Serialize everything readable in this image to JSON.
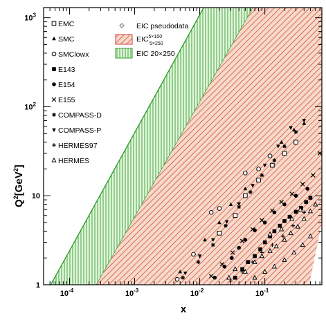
{
  "chart_data": {
    "type": "scatter",
    "title": "",
    "xlabel": "x",
    "ylabel": "Q²[GeV²]",
    "xlabel_text": "x",
    "ylabel_main": "Q",
    "ylabel_sup1": "2",
    "ylabel_unit": "[GeV",
    "ylabel_sup2": "2",
    "ylabel_close": "]",
    "xscale": "log",
    "yscale": "log",
    "xlim": [
      4e-05,
      0.75
    ],
    "ylim": [
      1,
      1300
    ],
    "grid": false,
    "x_ticks": [
      {
        "base": "10",
        "exp": "-4",
        "value": 0.0001
      },
      {
        "base": "10",
        "exp": "-3",
        "value": 0.001
      },
      {
        "base": "10",
        "exp": "-2",
        "value": 0.01
      },
      {
        "base": "10",
        "exp": "-1",
        "value": 0.1
      }
    ],
    "y_ticks": [
      {
        "label": "1",
        "value": 1
      },
      {
        "label": "10",
        "value": 10
      },
      {
        "base": "10",
        "exp": "2",
        "value": 100
      },
      {
        "base": "10",
        "exp": "3",
        "value": 1000
      }
    ],
    "bands": [
      {
        "name": "EIC 20×250",
        "color": "#2ca02c",
        "style": "vertical-hatch",
        "lower_edge": [
          [
            5.15e-05,
            1
          ],
          [
            0.0115,
            1300
          ]
        ],
        "upper_edge": [
          [
            0.00026,
            1
          ],
          [
            0.066,
            1300
          ]
        ]
      },
      {
        "name": "EIC 5×100 / 5×250",
        "color": "#d23c32",
        "style": "diagonal-hatch",
        "lower_edge": [
          [
            0.00026,
            1
          ],
          [
            0.066,
            1300
          ]
        ],
        "upper_edge": [
          [
            0.48,
            1
          ],
          [
            0.75,
            5
          ]
        ]
      }
    ],
    "series": [
      {
        "name": "EMC",
        "marker": "open-square",
        "points": [
          [
            0.02,
            3.8
          ],
          [
            0.035,
            6
          ],
          [
            0.05,
            10
          ],
          [
            0.08,
            15
          ],
          [
            0.13,
            22
          ],
          [
            0.2,
            30
          ],
          [
            0.3,
            40
          ]
        ]
      },
      {
        "name": "SMC",
        "marker": "filled-triangle",
        "points": [
          [
            0.005,
            1.4
          ],
          [
            0.008,
            2.2
          ],
          [
            0.012,
            3.2
          ],
          [
            0.02,
            5
          ],
          [
            0.03,
            8
          ],
          [
            0.05,
            12
          ],
          [
            0.08,
            20
          ],
          [
            0.12,
            28
          ],
          [
            0.18,
            40
          ],
          [
            0.28,
            55
          ],
          [
            0.4,
            65
          ]
        ]
      },
      {
        "name": "SMClowx",
        "marker": "open-circle",
        "points": [
          [
            0.0045,
            1.15
          ],
          [
            0.008,
            2.2
          ],
          [
            0.015,
            6.5
          ],
          [
            0.02,
            7.2
          ],
          [
            0.05,
            18
          ],
          [
            0.08,
            20
          ],
          [
            0.12,
            28
          ]
        ]
      },
      {
        "name": "E143",
        "marker": "filled-square",
        "points": [
          [
            0.035,
            1.2
          ],
          [
            0.045,
            1.5
          ],
          [
            0.055,
            1.8
          ],
          [
            0.07,
            2.1
          ],
          [
            0.085,
            2.5
          ],
          [
            0.1,
            3
          ],
          [
            0.12,
            3.5
          ],
          [
            0.14,
            4
          ],
          [
            0.17,
            4.6
          ],
          [
            0.2,
            5.2
          ],
          [
            0.24,
            5.8
          ],
          [
            0.3,
            6.6
          ],
          [
            0.36,
            7.3
          ],
          [
            0.43,
            8.5
          ],
          [
            0.5,
            9.5
          ]
        ]
      },
      {
        "name": "E154",
        "marker": "filled-circle",
        "points": [
          [
            0.017,
            1.2
          ],
          [
            0.024,
            1.6
          ],
          [
            0.031,
            2
          ],
          [
            0.04,
            2.6
          ],
          [
            0.05,
            3.2
          ],
          [
            0.07,
            4.1
          ],
          [
            0.1,
            5
          ],
          [
            0.14,
            6.5
          ],
          [
            0.2,
            8
          ],
          [
            0.3,
            10
          ],
          [
            0.45,
            12
          ]
        ]
      },
      {
        "name": "E155",
        "marker": "cross",
        "points": [
          [
            0.015,
            1.25
          ],
          [
            0.022,
            1.7
          ],
          [
            0.032,
            2.3
          ],
          [
            0.045,
            3.1
          ],
          [
            0.065,
            4.2
          ],
          [
            0.09,
            5.3
          ],
          [
            0.13,
            6.8
          ],
          [
            0.18,
            8.5
          ],
          [
            0.26,
            10.5
          ],
          [
            0.38,
            13.5
          ],
          [
            0.55,
            17
          ],
          [
            0.7,
            30
          ]
        ]
      },
      {
        "name": "COMPASS-D",
        "marker": "asterisk",
        "points": [
          [
            0.0055,
            1.2
          ],
          [
            0.0095,
            1.8
          ],
          [
            0.016,
            2.8
          ],
          [
            0.025,
            4.6
          ],
          [
            0.04,
            7.5
          ],
          [
            0.06,
            11
          ],
          [
            0.09,
            17
          ],
          [
            0.14,
            25
          ],
          [
            0.2,
            36
          ],
          [
            0.3,
            52
          ]
        ]
      },
      {
        "name": "COMPASS-P",
        "marker": "filled-down-triangle",
        "points": [
          [
            0.006,
            1.35
          ],
          [
            0.01,
            2.1
          ],
          [
            0.016,
            3.2
          ],
          [
            0.026,
            5.1
          ],
          [
            0.04,
            8.1
          ],
          [
            0.065,
            13
          ],
          [
            0.1,
            22
          ],
          [
            0.16,
            36
          ],
          [
            0.25,
            58
          ],
          [
            0.4,
            70
          ]
        ]
      },
      {
        "name": "HERMES97",
        "marker": "plus",
        "points": [
          [
            0.03,
            1.1
          ],
          [
            0.045,
            1.4
          ],
          [
            0.065,
            1.8
          ],
          [
            0.09,
            2.3
          ],
          [
            0.13,
            2.8
          ],
          [
            0.19,
            3.5
          ],
          [
            0.27,
            4.6
          ],
          [
            0.4,
            6.5
          ]
        ]
      },
      {
        "name": "HERMES",
        "marker": "open-triangle",
        "points": [
          [
            0.028,
            1.2
          ],
          [
            0.035,
            1.5
          ],
          [
            0.05,
            1.4
          ],
          [
            0.07,
            1.8
          ],
          [
            0.09,
            2.1
          ],
          [
            0.12,
            2.4
          ],
          [
            0.15,
            2.7
          ],
          [
            0.2,
            3.2
          ],
          [
            0.25,
            3.8
          ],
          [
            0.32,
            4.5
          ],
          [
            0.4,
            5.5
          ],
          [
            0.5,
            6.7
          ],
          [
            0.6,
            8
          ],
          [
            0.07,
            1.2
          ],
          [
            0.1,
            1.4
          ],
          [
            0.14,
            1.6
          ],
          [
            0.2,
            1.9
          ],
          [
            0.28,
            2.3
          ],
          [
            0.38,
            2.8
          ],
          [
            0.5,
            3.5
          ],
          [
            0.12,
            3.7
          ],
          [
            0.18,
            4.2
          ],
          [
            0.26,
            5.5
          ],
          [
            0.35,
            7
          ]
        ]
      },
      {
        "name": "EIC pseudodata",
        "marker": "diamond",
        "points": []
      }
    ],
    "legend_left": [
      {
        "label": "EMC",
        "marker": "open-square"
      },
      {
        "label": "SMC",
        "marker": "filled-triangle"
      },
      {
        "label": "SMClowx",
        "marker": "open-circle"
      },
      {
        "label": "E143",
        "marker": "filled-square"
      },
      {
        "label": "E154",
        "marker": "filled-circle"
      },
      {
        "label": "E155",
        "marker": "cross"
      },
      {
        "label": "COMPASS-D",
        "marker": "asterisk"
      },
      {
        "label": "COMPASS-P",
        "marker": "filled-down-triangle"
      },
      {
        "label": "HERMES97",
        "marker": "plus"
      },
      {
        "label": "HERMES",
        "marker": "open-triangle"
      }
    ],
    "legend_right": [
      {
        "label": "EIC pseudodata",
        "kind": "diamond"
      },
      {
        "label": "EIC",
        "sup": "5×100",
        "sub": "5×250",
        "kind": "red-hatch"
      },
      {
        "label": "EIC 20×250",
        "kind": "green-hatch"
      }
    ],
    "colors": {
      "red_band": "#d23c32",
      "red_band_fill": "#f6d9c9",
      "green_band": "#2ca02c",
      "green_band_fill": "#e4f4dc",
      "pseudodata": "#7a7a7a",
      "markers": "#000000"
    }
  }
}
